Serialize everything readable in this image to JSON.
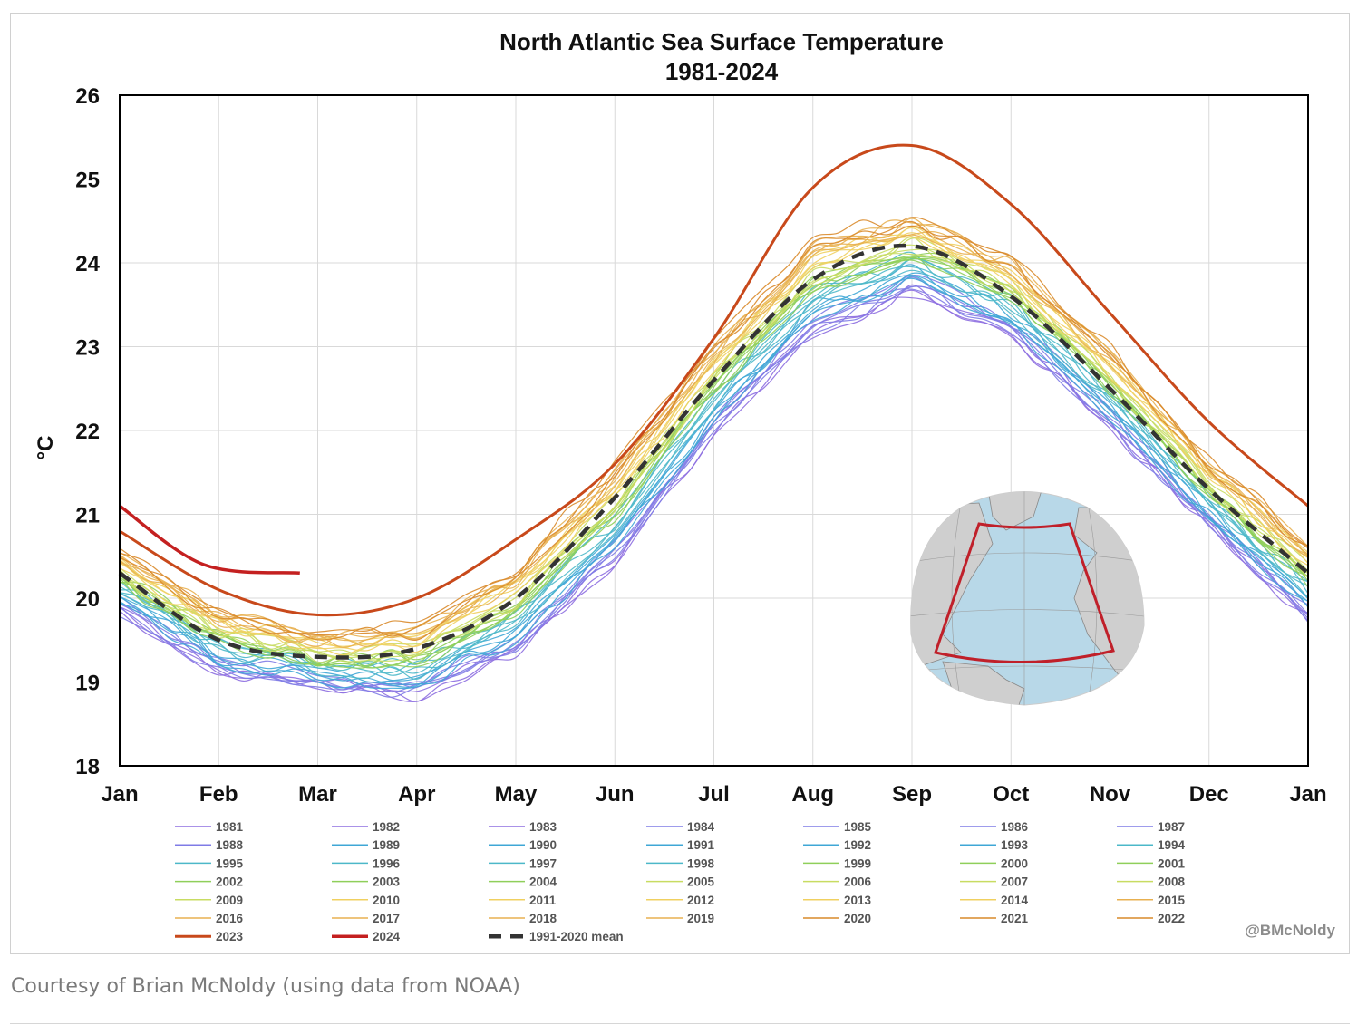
{
  "caption": "Courtesy of Brian McNoldy (using data from NOAA)",
  "chart_data": {
    "type": "line",
    "title": "North Atlantic Sea Surface Temperature",
    "subtitle": "1981-2024",
    "xlabel": "",
    "ylabel": "°C",
    "ylim": [
      18,
      26
    ],
    "yticks": [
      18,
      19,
      20,
      21,
      22,
      23,
      24,
      25,
      26
    ],
    "x_ticks": [
      "Jan",
      "Feb",
      "Mar",
      "Apr",
      "May",
      "Jun",
      "Jul",
      "Aug",
      "Sep",
      "Oct",
      "Nov",
      "Dec",
      "Jan"
    ],
    "grid": true,
    "legend_position": "bottom",
    "watermark": "@BMcNoldy",
    "inset_map": "North Atlantic region outlined on globe",
    "colors": {
      "cool_early_years": "#8d6ee0",
      "mid_years": "#3fa7d6",
      "green_years": "#8fcf5a",
      "yellow_years": "#f0d060",
      "orange_years": "#d98a2a",
      "year_2023": "#c8491b",
      "year_2024": "#c42020",
      "mean": "#333333",
      "region_outline": "#c0202a"
    },
    "series": [
      {
        "name": "2023",
        "color": "#c8491b",
        "x": [
          "Jan",
          "Feb",
          "Mar",
          "Apr",
          "May",
          "Jun",
          "Jul",
          "Aug",
          "Sep",
          "Oct",
          "Nov",
          "Dec",
          "Jan"
        ],
        "values": [
          20.8,
          20.1,
          19.8,
          20.0,
          20.7,
          21.6,
          23.1,
          24.9,
          25.4,
          24.7,
          23.4,
          22.1,
          21.1
        ]
      },
      {
        "name": "2024",
        "color": "#c42020",
        "x": [
          "Jan",
          "Feb",
          "Mar"
        ],
        "values": [
          21.1,
          20.4,
          20.3
        ]
      },
      {
        "name": "1991-2020 mean",
        "color": "#333333",
        "dashed": true,
        "x": [
          "Jan",
          "Feb",
          "Mar",
          "Apr",
          "May",
          "Jun",
          "Jul",
          "Aug",
          "Sep",
          "Oct",
          "Nov",
          "Dec",
          "Jan"
        ],
        "values": [
          20.3,
          19.5,
          19.3,
          19.4,
          20.0,
          21.2,
          22.6,
          23.8,
          24.2,
          23.6,
          22.5,
          21.3,
          20.3
        ]
      },
      {
        "name": "1981",
        "values": [
          19.8,
          19.1,
          18.9,
          18.8,
          19.3,
          20.4,
          21.9,
          23.1,
          23.6,
          23.1,
          22.0,
          20.8,
          19.7
        ]
      },
      {
        "name": "2022",
        "values": [
          20.6,
          19.9,
          19.6,
          19.7,
          20.4,
          21.6,
          23.1,
          24.3,
          24.6,
          24.1,
          23.0,
          21.7,
          20.7
        ]
      }
    ],
    "legend": {
      "years": [
        "1981",
        "1982",
        "1983",
        "1984",
        "1985",
        "1986",
        "1987",
        "1988",
        "1989",
        "1990",
        "1991",
        "1992",
        "1993",
        "1994",
        "1995",
        "1996",
        "1997",
        "1998",
        "1999",
        "2000",
        "2001",
        "2002",
        "2003",
        "2004",
        "2005",
        "2006",
        "2007",
        "2008",
        "2009",
        "2010",
        "2011",
        "2012",
        "2013",
        "2014",
        "2015",
        "2016",
        "2017",
        "2018",
        "2019",
        "2020",
        "2021",
        "2022",
        "2023",
        "2024"
      ],
      "mean_label": "1991-2020 mean"
    }
  }
}
